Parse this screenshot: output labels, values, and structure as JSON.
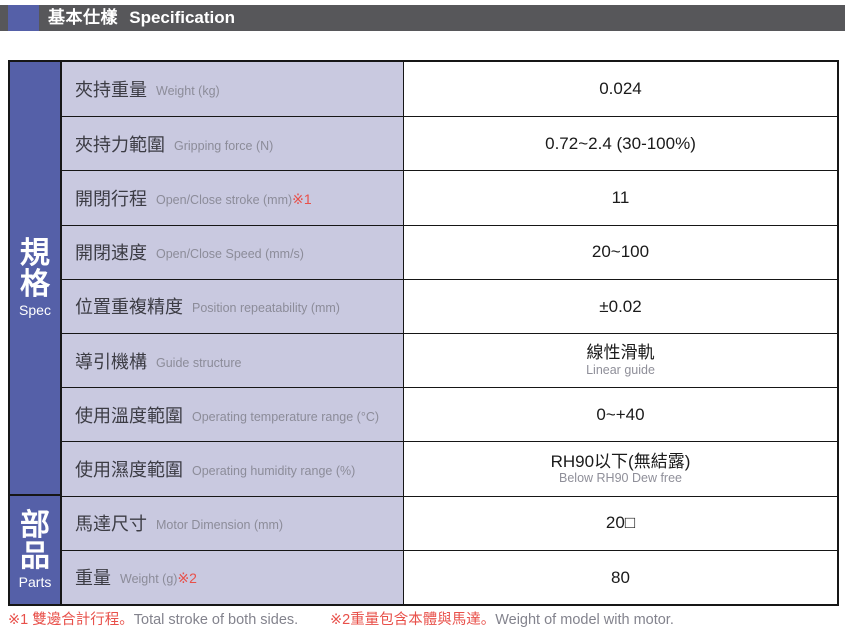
{
  "header": {
    "title_zh": "基本仕樣",
    "title_en": "Specification"
  },
  "colors": {
    "accent_blue": "#5560a8",
    "header_bar_gray": "#57575a",
    "label_bg_lavender": "#c9c9e0",
    "note_red": "#e8504a"
  },
  "sidebar": {
    "spec": {
      "zh": "規格",
      "en": "Spec"
    },
    "parts": {
      "zh": "部品",
      "en": "Parts"
    }
  },
  "rows": [
    {
      "label_zh": "夾持重量",
      "label_en": "Weight (kg)",
      "note": "",
      "value": "0.024",
      "value_sub": ""
    },
    {
      "label_zh": "夾持力範圍",
      "label_en": "Gripping force (N)",
      "note": "",
      "value": "0.72~2.4 (30-100%)",
      "value_sub": ""
    },
    {
      "label_zh": "開閉行程",
      "label_en": "Open/Close stroke (mm)",
      "note": "※1",
      "value": "11",
      "value_sub": ""
    },
    {
      "label_zh": "開閉速度",
      "label_en": "Open/Close Speed (mm/s)",
      "note": "",
      "value": "20~100",
      "value_sub": ""
    },
    {
      "label_zh": "位置重複精度",
      "label_en": "Position repeatability (mm)",
      "note": "",
      "value": "±0.02",
      "value_sub": ""
    },
    {
      "label_zh": "導引機構",
      "label_en": "Guide structure",
      "note": "",
      "value": "線性滑軌",
      "value_sub": "Linear guide"
    },
    {
      "label_zh": "使用溫度範圍",
      "label_en": "Operating temperature range (°C)",
      "note": "",
      "value": "0~+40",
      "value_sub": ""
    },
    {
      "label_zh": "使用濕度範圍",
      "label_en": "Operating humidity range (%)",
      "note": "",
      "value": "RH90以下(無結露)",
      "value_sub": "Below RH90 Dew free"
    },
    {
      "label_zh": "馬達尺寸",
      "label_en": "Motor Dimension (mm)",
      "note": "",
      "value": "20□",
      "value_sub": ""
    },
    {
      "label_zh": "重量",
      "label_en": "Weight (g)",
      "note": "※2",
      "value": "80",
      "value_sub": ""
    }
  ],
  "footnotes": [
    {
      "zh": "※1 雙邊合計行程。",
      "en": "Total stroke of both sides."
    },
    {
      "zh": "※2重量包含本體與馬達。",
      "en": "Weight of model with motor."
    }
  ]
}
